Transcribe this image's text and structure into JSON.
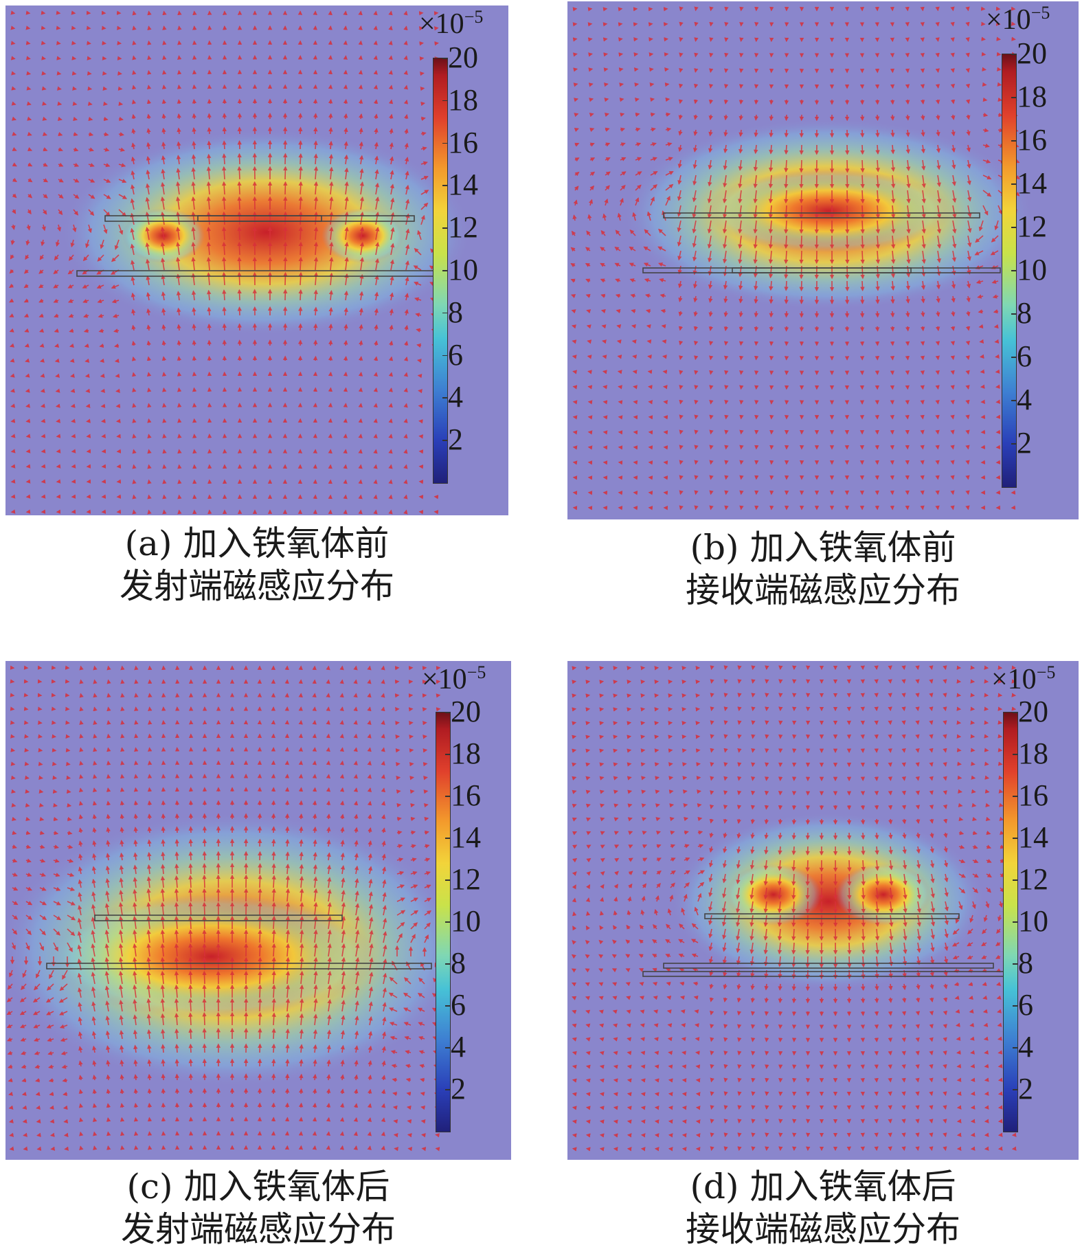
{
  "colorbar": {
    "multiplier_base": "×10",
    "multiplier_exp": "−5",
    "ticks": [
      "20",
      "18",
      "16",
      "14",
      "12",
      "10",
      "8",
      "6",
      "4",
      "2"
    ],
    "range": [
      0,
      20
    ],
    "tick_values": [
      20,
      18,
      16,
      14,
      12,
      10,
      8,
      6,
      4,
      2
    ]
  },
  "colors": {
    "background_field": "#8a86cc",
    "arrow": "#d8303a",
    "plate_stroke": "#444444"
  },
  "panels": [
    {
      "id": "a",
      "caption_line1": "(a) 加入铁氧体前",
      "caption_line2": "发射端磁感应分布"
    },
    {
      "id": "b",
      "caption_line1": "(b) 加入铁氧体前",
      "caption_line2": "接收端磁感应分布"
    },
    {
      "id": "c",
      "caption_line1": "(c) 加入铁氧体后",
      "caption_line2": "发射端磁感应分布"
    },
    {
      "id": "d",
      "caption_line1": "(d) 加入铁氧体后",
      "caption_line2": "接收端磁感应分布"
    }
  ]
}
